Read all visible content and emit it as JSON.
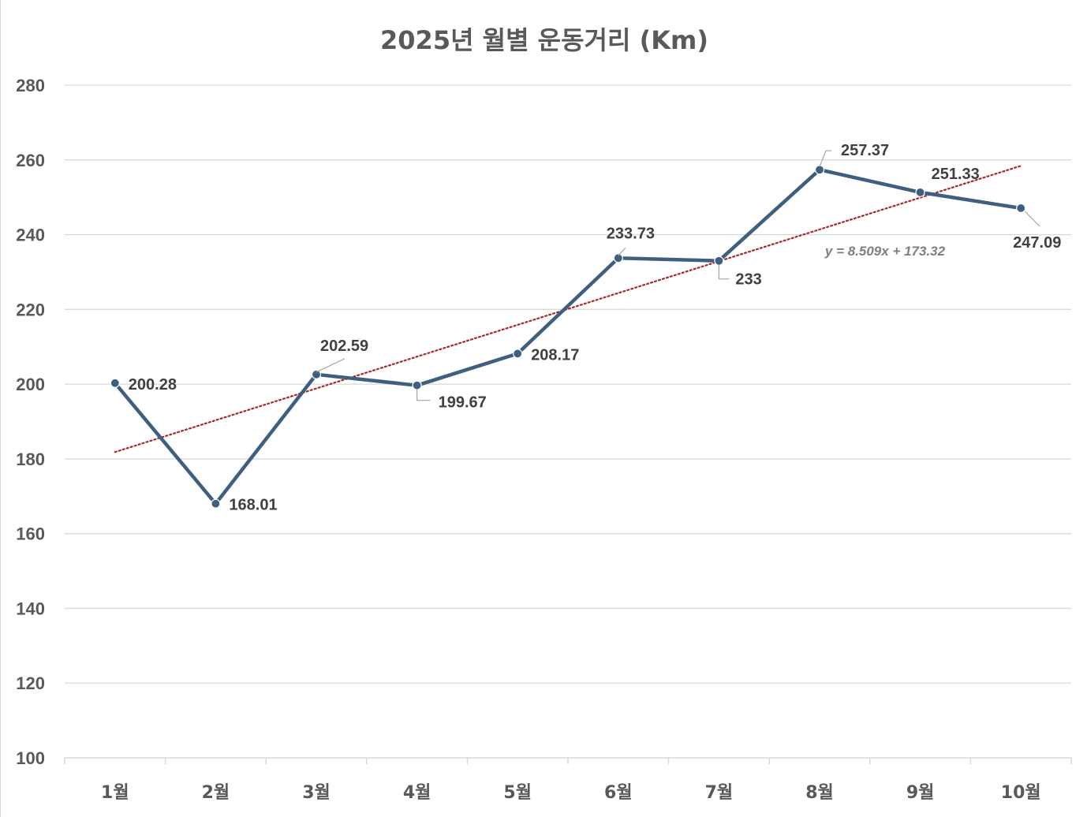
{
  "chart_data": {
    "type": "line",
    "title": "2025년 월별 운동거리 (Km)",
    "categories": [
      "1월",
      "2월",
      "3월",
      "4월",
      "5월",
      "6월",
      "7월",
      "8월",
      "9월",
      "10월"
    ],
    "series": [
      {
        "values": [
          200.28,
          168.01,
          202.59,
          199.67,
          208.17,
          233.73,
          233,
          257.37,
          251.33,
          247.09
        ],
        "labels": [
          "200.28",
          "168.01",
          "202.59",
          "199.67",
          "208.17",
          "233.73",
          "233",
          "257.37",
          "251.33",
          "247.09"
        ],
        "color": "#3E5F80"
      }
    ],
    "trendline": {
      "type": "linear",
      "slope": 8.509,
      "intercept": 173.32,
      "equation": "y = 8.509x + 173.32",
      "color": "#A52A2A"
    },
    "ylim": [
      100,
      280
    ],
    "yticks": [
      100,
      120,
      140,
      160,
      180,
      200,
      220,
      240,
      260,
      280
    ],
    "grid": true,
    "legend": "none",
    "colors": {
      "gridline": "#D9D9D9",
      "text": "#595959",
      "label": "#404040"
    }
  }
}
